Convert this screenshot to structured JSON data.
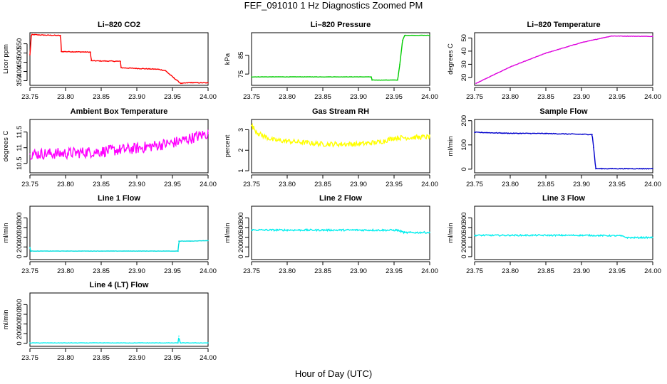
{
  "page": {
    "title": "FEF_091010  1 Hz Diagnostics Zoomed PM",
    "xlabel": "Hour of Day (UTC)"
  },
  "chart_data": [
    {
      "type": "line",
      "title": "Li–820 CO2",
      "ylabel": "Licor ppm",
      "color": "#ff0000",
      "xlim": [
        23.75,
        24.0
      ],
      "xticks": [
        "23.75",
        "23.80",
        "23.85",
        "23.90",
        "23.95",
        "24.00"
      ],
      "ylim": [
        325,
        610
      ],
      "yticks": [
        350,
        400,
        450,
        500,
        550
      ],
      "x": [
        23.75,
        23.752,
        23.753,
        23.77,
        23.793,
        23.794,
        23.835,
        23.836,
        23.877,
        23.878,
        23.93,
        23.94,
        23.952,
        23.962,
        23.975,
        24.0
      ],
      "y": [
        490,
        595,
        600,
        597,
        595,
        508,
        505,
        458,
        455,
        420,
        412,
        405,
        365,
        335,
        340,
        338
      ]
    },
    {
      "type": "line",
      "title": "Li–820 Pressure",
      "ylabel": "kPa",
      "color": "#00cc00",
      "xlim": [
        23.75,
        24.0
      ],
      "xticks": [
        "23.75",
        "23.80",
        "23.85",
        "23.90",
        "23.95",
        "24.00"
      ],
      "ylim": [
        69,
        97
      ],
      "yticks": [
        75,
        85
      ],
      "x": [
        23.75,
        23.918,
        23.919,
        23.955,
        23.958,
        23.962,
        23.965,
        24.0
      ],
      "y": [
        73.5,
        73.5,
        71.8,
        71.8,
        80,
        93,
        95.6,
        95.6
      ]
    },
    {
      "type": "line",
      "title": "Li–820 Temperature",
      "ylabel": "degrees C",
      "color": "#dd00dd",
      "xlim": [
        23.75,
        24.0
      ],
      "xticks": [
        "23.75",
        "23.80",
        "23.85",
        "23.90",
        "23.95",
        "24.00"
      ],
      "ylim": [
        14,
        54
      ],
      "yticks": [
        20,
        30,
        40,
        50
      ],
      "x": [
        23.752,
        23.8,
        23.85,
        23.9,
        23.942,
        24.0
      ],
      "y": [
        15.5,
        28,
        38.5,
        46.5,
        51.5,
        51.2
      ]
    },
    {
      "type": "line",
      "title": "Ambient Box Temperature",
      "ylabel": "degrees C",
      "color": "#ff00ff",
      "xlim": [
        23.75,
        24.0
      ],
      "xticks": [
        "23.75",
        "23.80",
        "23.85",
        "23.90",
        "23.95",
        "24.00"
      ],
      "ylim": [
        10.2,
        11.9
      ],
      "yticks": [
        10.5,
        11.0,
        11.5
      ],
      "x": [
        23.75,
        23.8,
        23.85,
        23.9,
        23.95,
        24.0
      ],
      "y": [
        10.8,
        10.82,
        10.88,
        10.98,
        11.15,
        11.45
      ]
    },
    {
      "type": "line",
      "title": "Gas Stream RH",
      "ylabel": "percent",
      "color": "#ffff00",
      "xlim": [
        23.75,
        24.0
      ],
      "xticks": [
        "23.75",
        "23.80",
        "23.85",
        "23.90",
        "23.95",
        "24.00"
      ],
      "ylim": [
        0.9,
        3.5
      ],
      "yticks": [
        1.0,
        2.0,
        3.0
      ],
      "x": [
        23.75,
        23.76,
        23.78,
        23.85,
        23.9,
        23.93,
        23.95,
        24.0
      ],
      "y": [
        3.2,
        2.8,
        2.5,
        2.3,
        2.3,
        2.4,
        2.6,
        2.65
      ]
    },
    {
      "type": "line",
      "title": "Sample Flow",
      "ylabel": "ml/min",
      "color": "#0000cc",
      "xlim": [
        23.75,
        24.0
      ],
      "xticks": [
        "23.75",
        "23.80",
        "23.85",
        "23.90",
        "23.95",
        "24.00"
      ],
      "ylim": [
        -15,
        205
      ],
      "yticks": [
        0,
        100,
        200
      ],
      "x": [
        23.75,
        23.8,
        23.85,
        23.915,
        23.917,
        23.92,
        24.0
      ],
      "y": [
        152,
        148,
        147,
        143,
        90,
        2,
        2
      ]
    },
    {
      "type": "line",
      "title": "Line 1 Flow",
      "ylabel": "ml/min",
      "color": "#00dddd",
      "xlim": [
        23.75,
        24.0
      ],
      "xticks": [
        "23.75",
        "23.80",
        "23.85",
        "23.90",
        "23.95",
        "24.00"
      ],
      "ylim": [
        -60,
        1040
      ],
      "yticks": [
        0,
        200,
        400,
        600,
        800
      ],
      "x": [
        23.75,
        23.751,
        23.752,
        23.958,
        23.959,
        23.975,
        24.0
      ],
      "y": [
        190,
        115,
        115,
        115,
        320,
        320,
        330
      ]
    },
    {
      "type": "line",
      "title": "Line 2 Flow",
      "ylabel": "ml/min",
      "color": "#00eeee",
      "xlim": [
        23.75,
        24.0
      ],
      "xticks": [
        "23.75",
        "23.80",
        "23.85",
        "23.90",
        "23.95",
        "24.00"
      ],
      "ylim": [
        -60,
        1040
      ],
      "yticks": [
        0,
        200,
        400,
        600,
        800
      ],
      "x": [
        23.75,
        23.8,
        23.85,
        23.9,
        23.955,
        23.965,
        24.0
      ],
      "y": [
        550,
        548,
        548,
        548,
        545,
        495,
        500
      ]
    },
    {
      "type": "line",
      "title": "Line 3 Flow",
      "ylabel": "ml/min",
      "color": "#00eeee",
      "xlim": [
        23.75,
        24.0
      ],
      "xticks": [
        "23.75",
        "23.80",
        "23.85",
        "23.90",
        "23.95",
        "24.00"
      ],
      "ylim": [
        -60,
        1040
      ],
      "yticks": [
        0,
        200,
        400,
        600,
        800
      ],
      "x": [
        23.75,
        23.8,
        23.85,
        23.9,
        23.955,
        23.965,
        24.0
      ],
      "y": [
        440,
        440,
        440,
        440,
        430,
        390,
        395
      ]
    },
    {
      "type": "line",
      "title": "Line 4 (LT) Flow",
      "ylabel": "ml/min",
      "color": "#00eeee",
      "xlim": [
        23.75,
        24.0
      ],
      "xticks": [
        "23.75",
        "23.80",
        "23.85",
        "23.90",
        "23.95",
        "24.00"
      ],
      "ylim": [
        -60,
        1040
      ],
      "yticks": [
        0,
        200,
        400,
        600,
        800
      ],
      "x": [
        23.75,
        23.958,
        23.959,
        23.96,
        23.961,
        24.0
      ],
      "y": [
        10,
        10,
        150,
        60,
        10,
        10
      ]
    }
  ]
}
